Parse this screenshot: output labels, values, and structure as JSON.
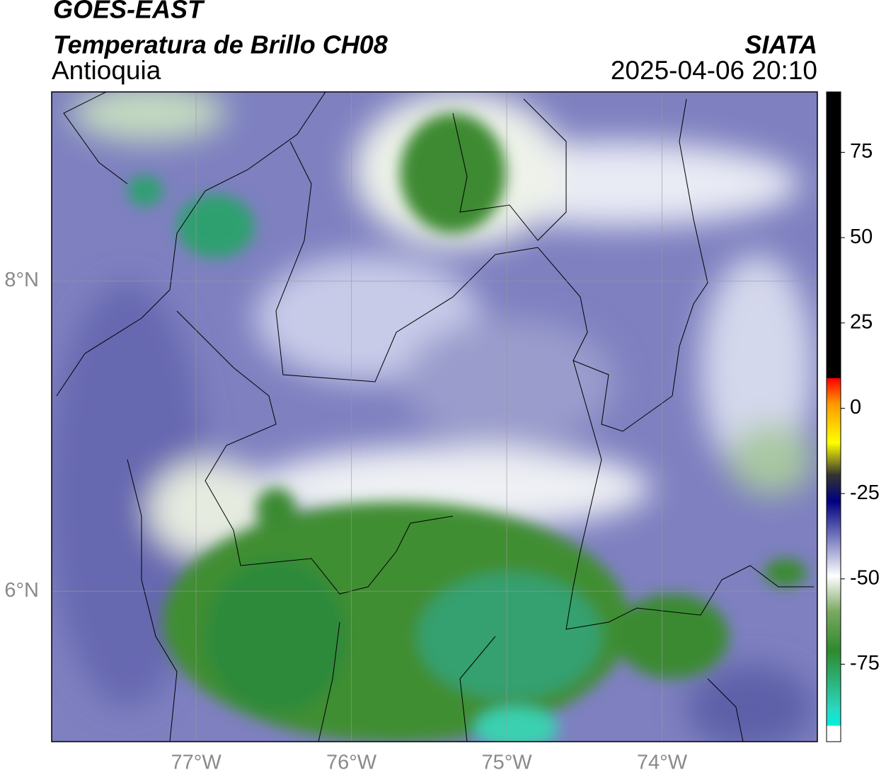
{
  "header": {
    "title": "GOES-EAST",
    "subtitle": "Temperatura de Brillo CH08",
    "region": "Antioquia",
    "source": "SIATA",
    "datetime": "2025-04-06 20:10"
  },
  "map": {
    "xlim": [
      -77.93,
      -73.0
    ],
    "ylim": [
      5.03,
      9.22
    ],
    "xticks": [
      {
        "value": -77,
        "label": "77°W"
      },
      {
        "value": -76,
        "label": "76°W"
      },
      {
        "value": -75,
        "label": "75°W"
      },
      {
        "value": -74,
        "label": "74°W"
      }
    ],
    "yticks": [
      {
        "value": 8,
        "label": "8°N"
      },
      {
        "value": 6,
        "label": "6°N"
      }
    ]
  },
  "colorbar": {
    "lim": [
      -97.7,
      92.7
    ],
    "ticks": [
      75,
      50,
      25,
      0,
      -25,
      -50,
      -75
    ]
  }
}
